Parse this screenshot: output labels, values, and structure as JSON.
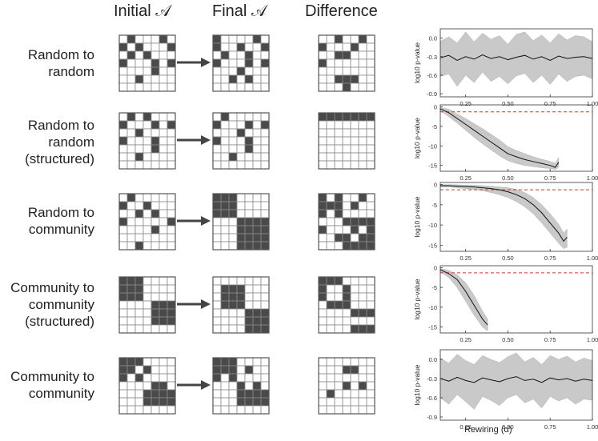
{
  "headers": {
    "initial": "Initial 𝒜",
    "final": "Final 𝒜",
    "difference": "Difference"
  },
  "colors": {
    "filled": "#4a4a4a",
    "empty": "#ffffff",
    "line": "#777777",
    "threshold": "#e0302a",
    "band": "#c9c9c9"
  },
  "rows": [
    {
      "label": "Random to\nrandom",
      "initial": [
        "0100010",
        "1010001",
        "0101000",
        "1000101",
        "0000100",
        "0010000",
        "0000000"
      ],
      "final": [
        "1000010",
        "1001001",
        "0100100",
        "1000101",
        "0001000",
        "0010100",
        "0000000"
      ],
      "difference": [
        "0010010",
        "1000100",
        "0011000",
        "1000000",
        "0000000",
        "0011100",
        "0001000"
      ]
    },
    {
      "label": "Random to\nrandom\n(structured)",
      "initial": [
        "0101000",
        "1000101",
        "0010000",
        "1000100",
        "0000100",
        "0010000",
        "0000000"
      ],
      "final": [
        "0100000",
        "1000101",
        "0001000",
        "1000100",
        "0000100",
        "0010000",
        "0000000"
      ],
      "difference": [
        "1111111",
        "0000000",
        "0000000",
        "0000000",
        "0000000",
        "0000000",
        "0000000"
      ]
    },
    {
      "label": "Random to\ncommunity",
      "initial": [
        "0100000",
        "1001000",
        "0010100",
        "1000001",
        "0000100",
        "0000000",
        "0010000"
      ],
      "final": [
        "1110000",
        "1110000",
        "1110000",
        "0001111",
        "0001111",
        "0001111",
        "0001111"
      ],
      "difference": [
        "1010010",
        "1110100",
        "1010000",
        "0001111",
        "1000101",
        "0011011",
        "0001111"
      ]
    },
    {
      "label": "Community to\ncommunity\n(structured)",
      "initial": [
        "1110000",
        "1110000",
        "1110000",
        "0000111",
        "0000111",
        "0000111",
        "0000000"
      ],
      "final": [
        "0000000",
        "0111000",
        "0111000",
        "0111000",
        "0000111",
        "0000111",
        "0000111"
      ],
      "difference": [
        "1110000",
        "1001000",
        "1001000",
        "0111000",
        "0000111",
        "0000000",
        "0000111"
      ]
    },
    {
      "label": "Community to\ncommunity",
      "initial": [
        "1110000",
        "1101000",
        "1010000",
        "0000110",
        "0001111",
        "0001111",
        "0000000"
      ],
      "final": [
        "1110000",
        "1110100",
        "1010000",
        "0001010",
        "0001111",
        "0001111",
        "0000000"
      ],
      "difference": [
        "0000000",
        "0001100",
        "0000000",
        "0001010",
        "0100000",
        "0000000",
        "0000000"
      ]
    }
  ],
  "chart_data": [
    {
      "type": "area-line",
      "ylabel": "log10 p-value",
      "ylim": [
        -0.95,
        0.15
      ],
      "yticks": [
        0.0,
        -0.3,
        -0.6,
        -0.9
      ],
      "ytick_labels": [
        "0.0",
        "-0.3",
        "-0.6",
        "-0.9"
      ],
      "xlim": [
        0.1,
        1.0
      ],
      "xticks": [
        0.25,
        0.5,
        0.75,
        1.0
      ],
      "xtick_labels": [
        "0.25",
        "0.50",
        "0.75",
        "1.00"
      ],
      "threshold": null,
      "x": [
        0.1,
        0.15,
        0.2,
        0.25,
        0.3,
        0.35,
        0.4,
        0.45,
        0.5,
        0.55,
        0.6,
        0.65,
        0.7,
        0.75,
        0.8,
        0.85,
        0.9,
        0.95,
        1.0
      ],
      "y": [
        -0.32,
        -0.28,
        -0.36,
        -0.3,
        -0.34,
        -0.27,
        -0.33,
        -0.3,
        -0.35,
        -0.31,
        -0.28,
        -0.34,
        -0.3,
        -0.36,
        -0.29,
        -0.33,
        -0.31,
        -0.3,
        -0.33
      ],
      "lower": [
        -0.62,
        -0.58,
        -0.78,
        -0.6,
        -0.72,
        -0.55,
        -0.7,
        -0.62,
        -0.74,
        -0.61,
        -0.57,
        -0.72,
        -0.6,
        -0.75,
        -0.58,
        -0.7,
        -0.62,
        -0.6,
        -0.66
      ],
      "upper": [
        -0.05,
        0.02,
        -0.08,
        0.1,
        -0.06,
        0.08,
        -0.02,
        0.04,
        -0.1,
        0.06,
        0.1,
        -0.04,
        0.05,
        -0.08,
        0.07,
        -0.03,
        0.04,
        0.02,
        -0.06
      ]
    },
    {
      "type": "area-line",
      "ylabel": "log10 p-value",
      "ylim": [
        -16.5,
        0.5
      ],
      "yticks": [
        0,
        -5,
        -10,
        -15
      ],
      "ytick_labels": [
        "0",
        "-5",
        "-10",
        "-15"
      ],
      "xlim": [
        0.1,
        1.0
      ],
      "xticks": [
        0.25,
        0.5,
        0.75,
        1.0
      ],
      "xtick_labels": [
        "0.25",
        "0.50",
        "0.75",
        "1.00"
      ],
      "threshold": -1.3,
      "x": [
        0.1,
        0.15,
        0.2,
        0.25,
        0.3,
        0.35,
        0.4,
        0.45,
        0.5,
        0.55,
        0.6,
        0.65,
        0.7,
        0.75,
        0.78,
        0.8
      ],
      "y": [
        -0.5,
        -1.5,
        -3.0,
        -4.5,
        -6.0,
        -7.5,
        -9.0,
        -10.5,
        -12.0,
        -12.8,
        -13.5,
        -14.0,
        -14.5,
        -15.0,
        -15.5,
        -14.2
      ],
      "lower": [
        -1.0,
        -2.5,
        -4.2,
        -6.0,
        -7.8,
        -9.5,
        -11.0,
        -12.5,
        -13.8,
        -14.5,
        -15.0,
        -15.3,
        -15.6,
        -15.8,
        -16.0,
        -15.5
      ],
      "upper": [
        -0.2,
        -0.6,
        -1.8,
        -3.0,
        -4.3,
        -5.6,
        -7.0,
        -8.5,
        -10.2,
        -11.2,
        -12.0,
        -12.8,
        -13.4,
        -14.0,
        -14.5,
        -13.0
      ]
    },
    {
      "type": "area-line",
      "ylabel": "log10 p-value",
      "ylim": [
        -16.5,
        0.5
      ],
      "yticks": [
        0,
        -5,
        -10,
        -15
      ],
      "ytick_labels": [
        "0",
        "-5",
        "-10",
        "-15"
      ],
      "xlim": [
        0.1,
        1.0
      ],
      "xticks": [
        0.25,
        0.5,
        0.75,
        1.0
      ],
      "xtick_labels": [
        "0.25",
        "0.50",
        "0.75",
        "1.00"
      ],
      "threshold": -1.3,
      "x": [
        0.1,
        0.15,
        0.2,
        0.25,
        0.3,
        0.35,
        0.4,
        0.45,
        0.5,
        0.55,
        0.6,
        0.65,
        0.7,
        0.75,
        0.8,
        0.83,
        0.85
      ],
      "y": [
        -0.3,
        -0.3,
        -0.4,
        -0.5,
        -0.6,
        -0.8,
        -1.0,
        -1.3,
        -1.8,
        -2.5,
        -3.5,
        -5.0,
        -7.0,
        -9.5,
        -12.0,
        -14.0,
        -13.0
      ],
      "lower": [
        -0.6,
        -0.6,
        -0.8,
        -1.0,
        -1.2,
        -1.5,
        -2.0,
        -2.5,
        -3.2,
        -4.2,
        -5.5,
        -7.2,
        -9.5,
        -12.0,
        -14.5,
        -15.8,
        -15.5
      ],
      "upper": [
        -0.05,
        -0.05,
        -0.1,
        -0.15,
        -0.2,
        -0.3,
        -0.4,
        -0.6,
        -0.8,
        -1.2,
        -2.0,
        -3.2,
        -5.0,
        -7.2,
        -9.8,
        -12.0,
        -11.0
      ]
    },
    {
      "type": "area-line",
      "ylabel": "log10 p-value",
      "ylim": [
        -16.5,
        0.5
      ],
      "yticks": [
        0,
        -5,
        -10,
        -15
      ],
      "ytick_labels": [
        "0",
        "-5",
        "-10",
        "-15"
      ],
      "xlim": [
        0.1,
        1.0
      ],
      "xticks": [
        0.25,
        0.5,
        0.75,
        1.0
      ],
      "xtick_labels": [
        "0.25",
        "0.50",
        "0.75",
        "1.00"
      ],
      "threshold": -1.3,
      "x": [
        0.1,
        0.15,
        0.2,
        0.25,
        0.3,
        0.35,
        0.38
      ],
      "y": [
        -0.5,
        -1.5,
        -3.0,
        -6.0,
        -9.5,
        -13.0,
        -14.5
      ],
      "lower": [
        -1.0,
        -2.5,
        -5.0,
        -8.5,
        -12.0,
        -15.0,
        -16.0
      ],
      "upper": [
        -0.2,
        -0.7,
        -1.8,
        -3.8,
        -7.0,
        -11.0,
        -13.0
      ]
    },
    {
      "type": "area-line",
      "ylabel": "log10 p-value",
      "ylim": [
        -0.95,
        0.15
      ],
      "yticks": [
        0.0,
        -0.3,
        -0.6,
        -0.9
      ],
      "ytick_labels": [
        "0.0",
        "-0.3",
        "-0.6",
        "-0.9"
      ],
      "xlim": [
        0.1,
        1.0
      ],
      "xticks": [
        0.25,
        0.5,
        0.75,
        1.0
      ],
      "xtick_labels": [
        "0.25",
        "0.50",
        "0.75",
        "1.00"
      ],
      "threshold": null,
      "x": [
        0.1,
        0.15,
        0.2,
        0.25,
        0.3,
        0.35,
        0.4,
        0.45,
        0.5,
        0.55,
        0.6,
        0.65,
        0.7,
        0.75,
        0.8,
        0.85,
        0.9,
        0.95,
        1.0
      ],
      "y": [
        -0.3,
        -0.34,
        -0.28,
        -0.33,
        -0.36,
        -0.29,
        -0.32,
        -0.35,
        -0.3,
        -0.27,
        -0.33,
        -0.31,
        -0.36,
        -0.29,
        -0.32,
        -0.3,
        -0.34,
        -0.31,
        -0.33
      ],
      "lower": [
        -0.6,
        -0.7,
        -0.55,
        -0.66,
        -0.78,
        -0.58,
        -0.64,
        -0.72,
        -0.6,
        -0.55,
        -0.68,
        -0.62,
        -0.76,
        -0.58,
        -0.65,
        -0.6,
        -0.7,
        -0.62,
        -0.64
      ],
      "upper": [
        0.02,
        -0.06,
        0.08,
        -0.02,
        -0.08,
        0.06,
        0.0,
        -0.05,
        0.04,
        0.1,
        -0.04,
        0.03,
        -0.08,
        0.06,
        0.0,
        0.05,
        -0.04,
        0.02,
        -0.02
      ]
    }
  ],
  "xaxis_label": "Rewiring (α)"
}
